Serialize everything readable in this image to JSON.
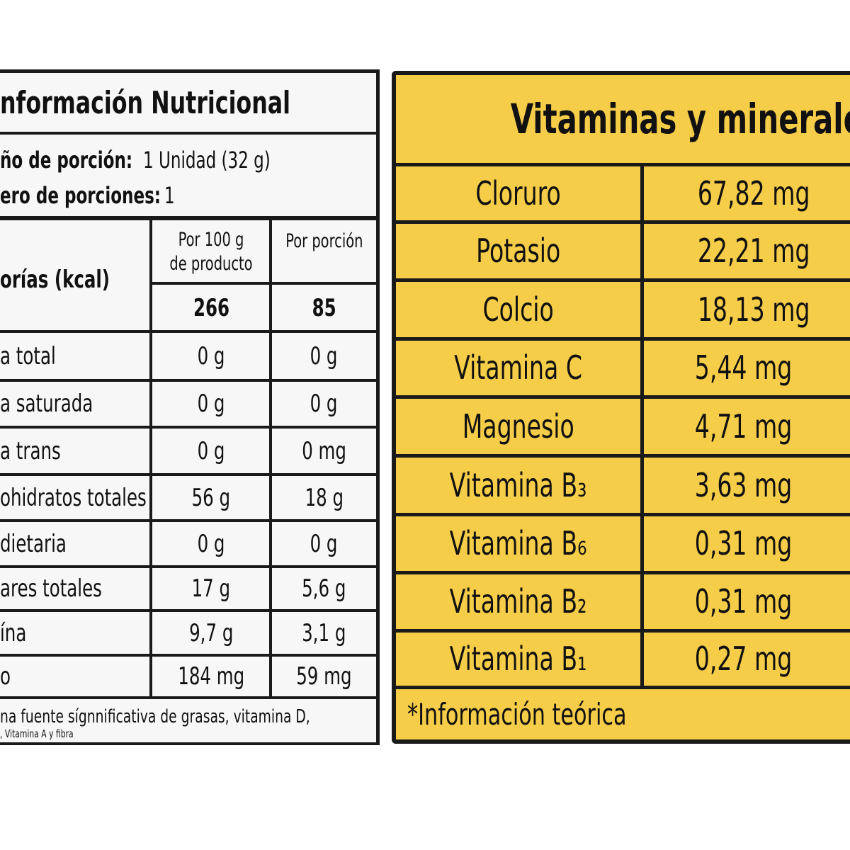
{
  "left": {
    "title": "nformación Nutricional",
    "serving_size": {
      "label": "ño de porción:",
      "value": "1 Unidad (32 g)"
    },
    "servings": {
      "label": "ero de porciones:",
      "value": "1"
    },
    "columns": [
      "Por 100 g de producto",
      "Por porción"
    ],
    "calories": {
      "label": "orías (kcal)",
      "values": [
        "266",
        "85"
      ]
    },
    "rows": [
      [
        "a total",
        "0 g",
        "0 g"
      ],
      [
        "a saturada",
        "0 g",
        "0 g"
      ],
      [
        "a trans",
        "0 g",
        "0 mg"
      ],
      [
        "ohidratos totales",
        "56 g",
        "18 g"
      ],
      [
        "dietaria",
        "0 g",
        "0 g"
      ],
      [
        "ares totales",
        "17 g",
        "5,6 g"
      ],
      [
        "ína",
        "9,7 g",
        "3,1 g"
      ],
      [
        "o",
        "184 mg",
        "59 mg"
      ]
    ],
    "footnote": [
      "na fuente sígnnificativa de grasas, vitamina D,",
      ", Vitamina A y fibra"
    ]
  },
  "right": {
    "title": "Vitaminas y minerales",
    "rows": [
      [
        "Cloruro",
        "67,82 mg"
      ],
      [
        "Potasio",
        "22,21 mg"
      ],
      [
        "Colcio",
        "18,13 mg"
      ],
      [
        "Vitamina C",
        "5,44 mg"
      ],
      [
        "Magnesio",
        "4,71 mg"
      ],
      [
        "Vitamina B₃",
        "3,63 mg"
      ],
      [
        "Vitamina B₆",
        "0,31 mg"
      ],
      [
        "Vitamina B₂",
        "0,31 mg"
      ],
      [
        "Vitamina B₁",
        "0,27 mg"
      ]
    ],
    "footnote": "*Información teórica"
  }
}
